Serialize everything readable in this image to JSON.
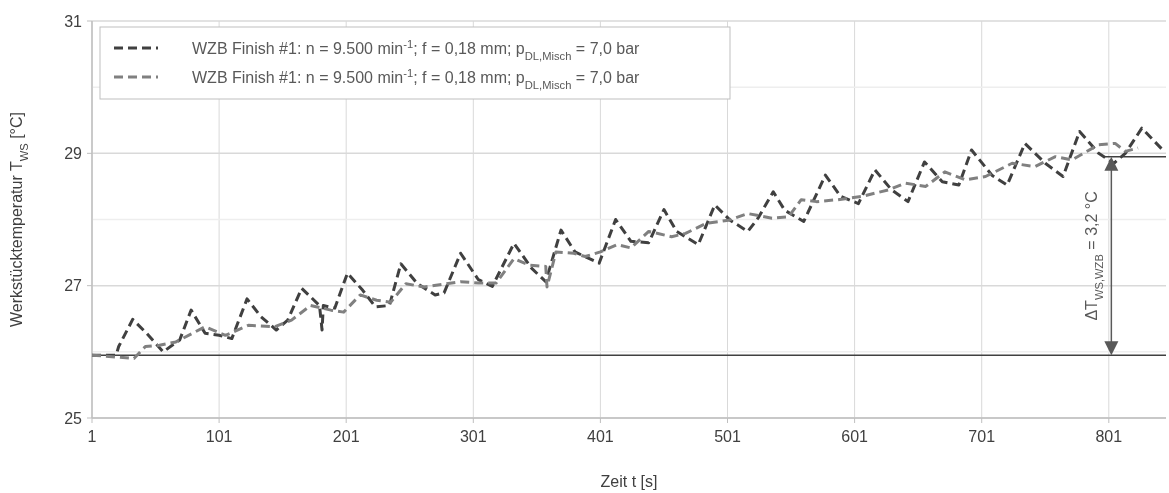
{
  "chart_data": {
    "type": "line",
    "xlabel": "Zeit t [s]",
    "ylabel": "Werkstücktemperatur T$_{WS}$ [°C]",
    "xlim": [
      1,
      846
    ],
    "xticks": [
      1,
      101,
      201,
      301,
      401,
      501,
      601,
      701,
      801
    ],
    "ylim": [
      25,
      31
    ],
    "yticks": [
      25,
      {
        "value": 26,
        "label": null
      },
      27,
      {
        "value": 28,
        "label": null
      },
      29,
      {
        "value": 30,
        "label": null
      },
      31
    ],
    "grid": true,
    "legend": "top left",
    "line_style": "dashed",
    "ref_lines": [
      {
        "axis": "y",
        "value": 25.95,
        "color": "#404040"
      }
    ],
    "annotations": [
      {
        "text": "ΔT$_{WS,WZB}$ = 3,2 °C",
        "x": 803,
        "y": 28.95
      }
    ],
    "series": [
      {
        "name": "WZB Finish #1: n = 9.500 min$^{-1}$; f = 0,18 mm; p$_{DL,Misch}$ = 7,0 bar",
        "color": "#404040",
        "x": [
          1,
          20,
          22,
          33,
          44,
          57,
          70,
          79,
          90,
          101,
          111,
          123,
          134,
          146,
          155,
          166,
          180,
          182,
          183,
          192,
          202,
          214,
          224,
          235,
          244,
          257,
          271,
          278,
          291,
          305,
          316,
          333,
          347,
          358,
          370,
          381,
          400,
          413,
          425,
          439,
          451,
          461,
          478,
          491,
          503,
          517,
          525,
          537,
          546,
          561,
          578,
          590,
          604,
          617,
          630,
          643,
          656,
          670,
          683,
          693,
          709,
          721,
          735,
          751,
          765,
          778,
          793,
          805,
          814,
          827,
          845
        ],
        "values": [
          25.95,
          25.95,
          26.08,
          26.49,
          26.28,
          26.0,
          26.18,
          26.63,
          26.28,
          26.25,
          26.2,
          26.8,
          26.53,
          26.33,
          26.48,
          26.96,
          26.7,
          26.33,
          26.7,
          26.66,
          27.19,
          26.93,
          26.68,
          26.7,
          27.33,
          27.03,
          26.86,
          26.89,
          27.49,
          27.09,
          26.99,
          27.64,
          27.26,
          27.06,
          27.84,
          27.51,
          27.34,
          28.0,
          27.67,
          27.65,
          28.15,
          27.82,
          27.62,
          28.22,
          27.99,
          27.82,
          28.02,
          28.42,
          28.14,
          27.97,
          28.67,
          28.35,
          28.24,
          28.75,
          28.45,
          28.27,
          28.87,
          28.57,
          28.52,
          29.05,
          28.67,
          28.52,
          29.15,
          28.85,
          28.65,
          29.33,
          29.0,
          28.85,
          29.0,
          29.38,
          29.02
        ]
      },
      {
        "name": "WZB Finish #1: n = 9.500 min$^{-1}$; f = 0,18 mm; p$_{DL,Misch}$ = 7,0 bar",
        "color": "#808080",
        "x": [
          1,
          34,
          43,
          54,
          67,
          90,
          106,
          124,
          145,
          158,
          173,
          189,
          199,
          212,
          225,
          236,
          248,
          262,
          291,
          305,
          319,
          333,
          345,
          358,
          359,
          366,
          380,
          389,
          401,
          414,
          425,
          439,
          457,
          468,
          484,
          502,
          517,
          536,
          549,
          559,
          571,
          588,
          607,
          628,
          641,
          657,
          672,
          688,
          704,
          725,
          743,
          759,
          772,
          793,
          806,
          814,
          824
        ],
        "values": [
          25.95,
          25.9,
          26.08,
          26.1,
          26.15,
          26.38,
          26.25,
          26.4,
          26.38,
          26.48,
          26.7,
          26.63,
          26.6,
          26.86,
          26.78,
          26.75,
          27.03,
          26.98,
          27.06,
          27.04,
          27.04,
          27.41,
          27.31,
          27.29,
          26.98,
          27.51,
          27.49,
          27.44,
          27.51,
          27.62,
          27.57,
          27.82,
          27.74,
          27.79,
          27.94,
          27.99,
          28.09,
          28.02,
          28.04,
          28.3,
          28.27,
          28.3,
          28.35,
          28.45,
          28.55,
          28.5,
          28.72,
          28.6,
          28.65,
          28.85,
          28.8,
          28.95,
          28.9,
          29.13,
          29.15,
          29.03,
          29.08
        ]
      }
    ]
  }
}
